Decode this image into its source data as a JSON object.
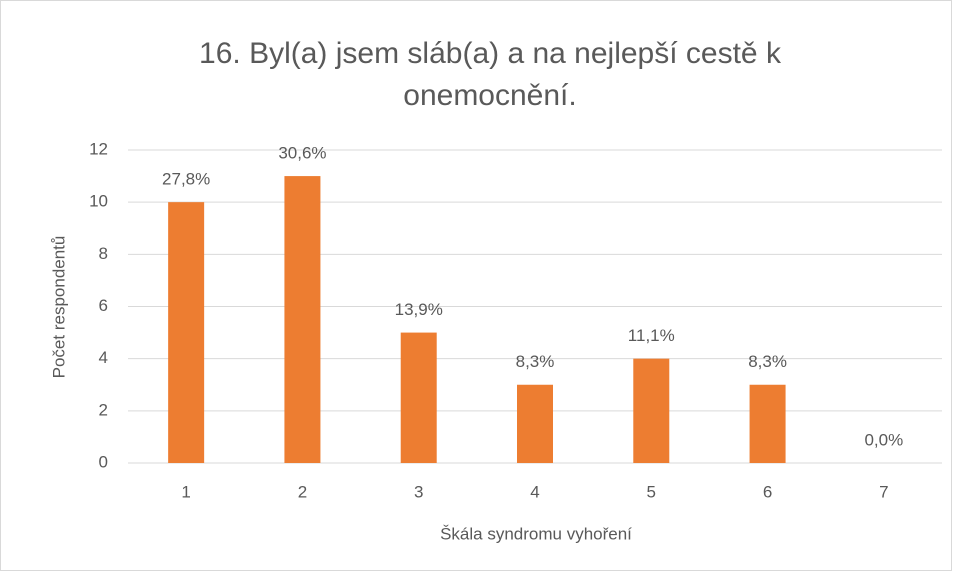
{
  "chart_data": {
    "type": "bar",
    "title": "16. Byl(a) jsem sláb(a) a na nejlepší cestě k onemocnění.",
    "categories": [
      "1",
      "2",
      "3",
      "4",
      "5",
      "6",
      "7"
    ],
    "values": [
      10,
      11,
      5,
      3,
      4,
      3,
      0
    ],
    "value_labels": [
      "27,8%",
      "30,6%",
      "13,9%",
      "8,3%",
      "11,1%",
      "8,3%",
      "0,0%"
    ],
    "color": "#ed7d31",
    "ylim": [
      0,
      12
    ],
    "yticks": [
      0,
      2,
      4,
      6,
      8,
      10,
      12
    ],
    "grid": true,
    "xlabel": "Škála syndromu vyhoření",
    "ylabel": "Počet respondentů"
  }
}
